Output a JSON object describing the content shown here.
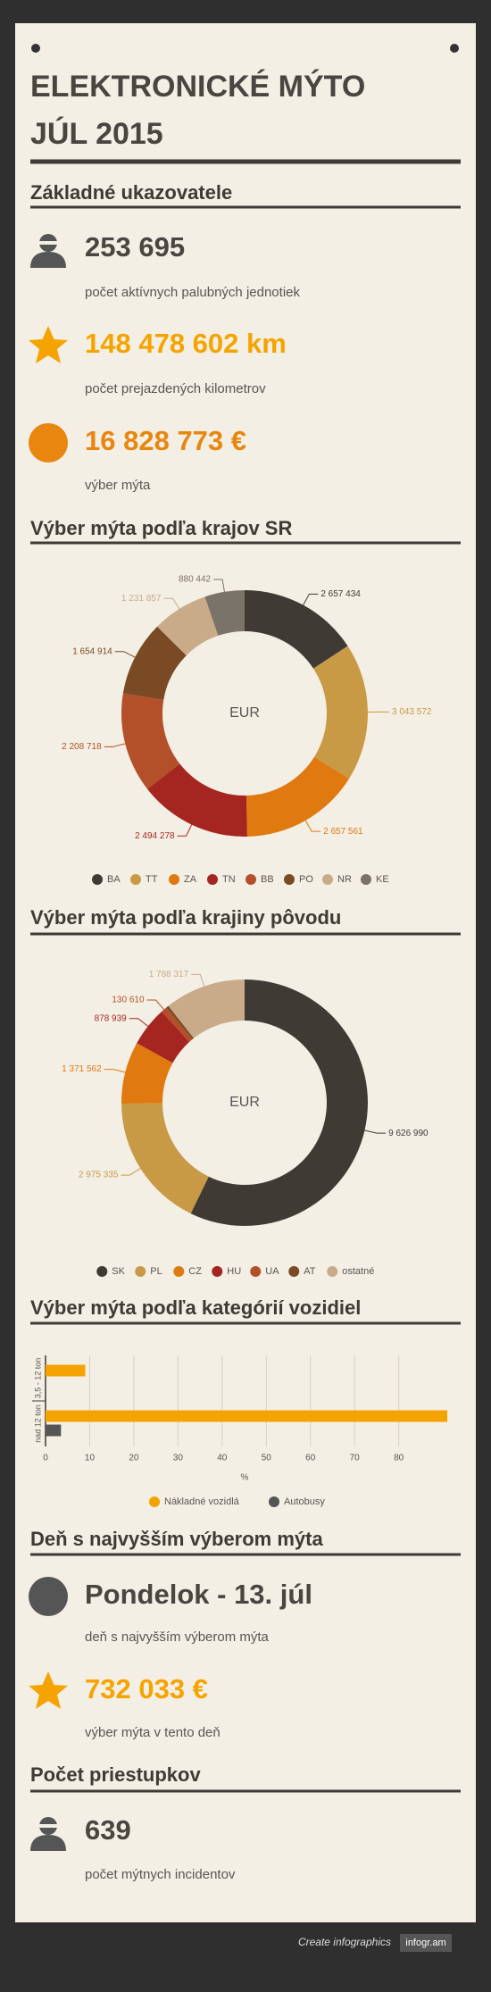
{
  "header": {
    "title_line1": "ELEKTRONICKÉ MÝTO",
    "title_line2": "JÚL 2015"
  },
  "sections": [
    {
      "heading": "Základné ukazovatele",
      "items": [
        {
          "value": "253 695",
          "label": "počet aktívnych palubných jednotiek"
        },
        {
          "value": "148 478 602 km",
          "label": "počet prejazdených kilometrov"
        },
        {
          "value": "16 828 773 €",
          "label": "výber mýta"
        }
      ]
    },
    {
      "heading": "Výber mýta podľa krajov SR"
    },
    {
      "heading": "Výber mýta podľa krajiny pôvodu"
    },
    {
      "heading": "Výber mýta podľa kategórií vozidiel"
    },
    {
      "heading": "Deň s najvyšším výberom mýta",
      "items": [
        {
          "value": "Pondelok - 13. júl",
          "label": "deň s najvyšším výberom mýta"
        },
        {
          "value": "732 033 €",
          "label": "výber mýta v tento deň"
        }
      ]
    },
    {
      "heading": "Počet priestupkov",
      "items": [
        {
          "value": "639",
          "label": "počet mýtnych incidentov"
        }
      ]
    }
  ],
  "chart_data": [
    {
      "type": "donut",
      "center_label": "EUR",
      "categories": [
        "BA",
        "TT",
        "ZA",
        "TN",
        "BB",
        "PO",
        "NR",
        "KE"
      ],
      "values": [
        2657434,
        3043572,
        2657561,
        2494278,
        2208718,
        1654914,
        1231857,
        880442
      ],
      "value_labels": [
        "2 657 434",
        "3 043 572",
        "2 657 561",
        "2 494 278",
        "2 208 718",
        "1 654 914",
        "1 231 857",
        "880 442"
      ],
      "colors": [
        "#3f3a33",
        "#c99a45",
        "#e0790f",
        "#a52620",
        "#b3502a",
        "#7a4a24",
        "#c9ab8a",
        "#7a736a"
      ]
    },
    {
      "type": "donut",
      "center_label": "EUR",
      "categories": [
        "SK",
        "PL",
        "CZ",
        "HU",
        "UA",
        "AT",
        "ostatné"
      ],
      "values": [
        9626990,
        2975335,
        1371562,
        878939,
        130610,
        57020,
        1788317
      ],
      "value_labels": [
        "9 626 990",
        "2 975 335",
        "1 371 562",
        "878 939",
        "130 610",
        null,
        "1 788 317"
      ],
      "colors": [
        "#3f3a33",
        "#c99a45",
        "#e0790f",
        "#a52620",
        "#b3502a",
        "#7a4a24",
        "#c9ab8a"
      ]
    },
    {
      "type": "bar",
      "orientation": "horizontal",
      "xlabel": "%",
      "categories": [
        "3,5 - 12 ton",
        "nad 12 ton"
      ],
      "series": [
        {
          "name": "Nákladné vozidlá",
          "color": "#f5a300",
          "values": [
            9,
            91
          ]
        },
        {
          "name": "Autobusy",
          "color": "#555555",
          "values": [
            0,
            3.5
          ]
        }
      ],
      "xlim": [
        0,
        92
      ],
      "xticks": [
        0,
        10,
        20,
        30,
        40,
        50,
        60,
        70,
        80
      ],
      "grid": true
    }
  ],
  "footer": {
    "text": "Create infographics",
    "brand": "infogr.am"
  }
}
